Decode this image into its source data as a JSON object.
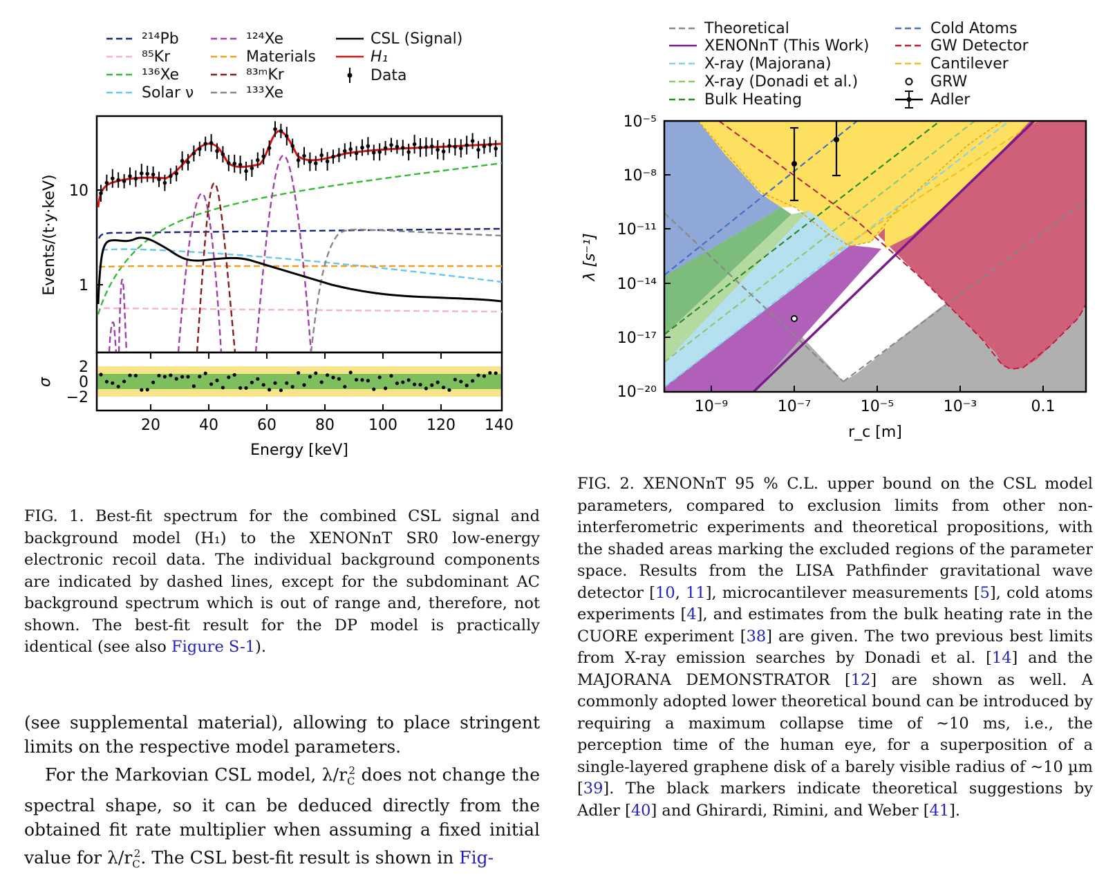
{
  "figure1": {
    "legend": [
      {
        "label": "²¹⁴Pb",
        "color": "#1a237e",
        "dash": true
      },
      {
        "label": "⁸⁵Kr",
        "color": "#f4b6c2",
        "dash": true
      },
      {
        "label": "¹³⁶Xe",
        "color": "#33bb33",
        "dash": true
      },
      {
        "label": "Solar ν",
        "color": "#66c8ee",
        "dash": true
      },
      {
        "label": "¹²⁴Xe",
        "color": "#a040a8",
        "dash": true
      },
      {
        "label": "Materials",
        "color": "#f0a020",
        "dash": true
      },
      {
        "label": "⁸³ᵐKr",
        "color": "#8b1a1a",
        "dash": true
      },
      {
        "label": "¹³³Xe",
        "color": "#888888",
        "dash": true
      },
      {
        "label": "CSL (Signal)",
        "color": "#000000",
        "dash": false
      },
      {
        "label": "H₁",
        "color": "#dd1111",
        "dash": false
      },
      {
        "label": "Data",
        "color": "#000000",
        "marker": "errorbar"
      }
    ],
    "ylabel": "Events/(t·y·keV)",
    "xlabel": "Energy [keV]",
    "resid_label": "σ",
    "xticks": [
      "20",
      "40",
      "60",
      "80",
      "100",
      "120",
      "140"
    ],
    "yticks": [
      "10",
      "1"
    ],
    "resid_ticks": [
      "2",
      "0",
      "−2"
    ]
  },
  "figure2": {
    "legend": [
      {
        "label": "Theoretical",
        "color": "#888888",
        "dash": true
      },
      {
        "label": "XENONnT (This Work)",
        "color": "#7a1a8a",
        "dash": false
      },
      {
        "label": "X-ray (Majorana)",
        "color": "#88d0ee",
        "dash": true
      },
      {
        "label": "X-ray (Donadi et al.)",
        "color": "#8cc870",
        "dash": true
      },
      {
        "label": "Bulk Heating",
        "color": "#2a8a2a",
        "dash": true
      },
      {
        "label": "Cold Atoms",
        "color": "#4470c0",
        "dash": true
      },
      {
        "label": "GW Detector",
        "color": "#c01a3a",
        "dash": true
      },
      {
        "label": "Cantilever",
        "color": "#f0c020",
        "dash": true
      },
      {
        "label": "GRW",
        "color": "#000000",
        "marker": "circle"
      },
      {
        "label": "Adler",
        "color": "#000000",
        "marker": "errorbar"
      }
    ],
    "ylabel": "λ [s⁻¹]",
    "xlabel": "r_c [m]",
    "yticks": [
      "10⁻⁵",
      "10⁻⁸",
      "10⁻¹¹",
      "10⁻¹⁴",
      "10⁻¹⁷",
      "10⁻²⁰"
    ],
    "xticks": [
      "10⁻⁹",
      "10⁻⁷",
      "10⁻⁵",
      "10⁻³",
      "0.1"
    ]
  },
  "caption1": {
    "label": "FIG. 1.",
    "text": "Best-fit spectrum for the combined CSL signal and background model (H₁) to the XENONnT SR0 low-energy electronic recoil data. The individual background components are indicated by dashed lines, except for the subdominant AC background spectrum which is out of range and, therefore, not shown. The best-fit result for the DP model is practically identical (see also ",
    "link": "Figure S-1",
    "tail": ")."
  },
  "caption2": {
    "label": "FIG. 2.",
    "p1": "XENONnT 95 % C.L. upper bound on the CSL model parameters, compared to exclusion limits from other non-interferometric experiments and theoretical propositions, with the shaded areas marking the excluded regions of the parameter space. Results from the LISA Pathfinder gravitational wave detector [",
    "r1": "10",
    "s1": ", ",
    "r2": "11",
    "p2": "], microcantilever measurements [",
    "r3": "5",
    "p3": "], cold atoms experiments [",
    "r4": "4",
    "p4": "], and estimates from the bulk heating rate in the CUORE experiment [",
    "r5": "38",
    "p5": "] are given. The two previous best limits from X-ray emission searches by Donadi et al. [",
    "r6": "14",
    "p6": "] and the MAJORANA DEMONSTRATOR [",
    "r7": "12",
    "p7": "] are shown as well. A commonly adopted lower theoretical bound can be introduced by requiring a maximum collapse time of ∼10 ms, i.e., the perception time of the human eye, for a superposition of a single-layered graphene disk of a barely visible radius of ∼10 µm [",
    "r8": "39",
    "p8": "]. The black markers indicate theoretical suggestions by Adler [",
    "r9": "40",
    "p9": "] and Ghirardi, Rimini, and Weber [",
    "r10": "41",
    "p10": "]."
  },
  "body": {
    "para1": "(see supplemental material), allowing to place stringent limits on the respective model parameters.",
    "para2a": "For the Markovian CSL model, λ/r",
    "para2b": " does not change the spectral shape, so it can be deduced directly from the obtained fit rate multiplier when assuming a fixed initial value for λ/r",
    "para2c": ". The CSL best-fit result is shown in ",
    "para2link": "Fig-"
  }
}
